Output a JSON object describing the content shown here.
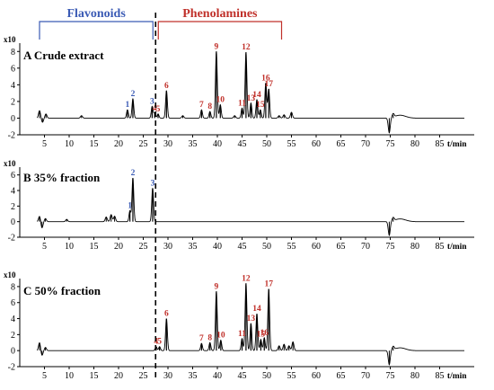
{
  "colors": {
    "flavonoid": "#3b5bb5",
    "phenolamine": "#c0302a",
    "trace": "#000000",
    "divider": "#000000"
  },
  "groups": {
    "flavonoids": {
      "label": "Flavonoids",
      "range": [
        4.0,
        27.5
      ]
    },
    "phenolamines": {
      "label": "Phenolamines",
      "range": [
        27.5,
        53.0
      ]
    }
  },
  "divider_x": 27.5,
  "chart_data": [
    {
      "type": "line",
      "panel": "A",
      "title": "A  Crude extract",
      "yscale_label": "x10",
      "x_unit": "t/min",
      "xlim": [
        0,
        92
      ],
      "ylim": [
        -2,
        9
      ],
      "yticks": [
        -2,
        0,
        2,
        4,
        6,
        8
      ],
      "xticks": [
        5,
        10,
        15,
        20,
        25,
        30,
        35,
        40,
        45,
        50,
        55,
        60,
        65,
        70,
        75,
        80,
        85
      ],
      "peaks": [
        {
          "label": "1",
          "x": 21.8,
          "y": 1.0,
          "group": "flavonoid"
        },
        {
          "label": "2",
          "x": 22.9,
          "y": 2.3,
          "group": "flavonoid"
        },
        {
          "label": "3",
          "x": 26.8,
          "y": 1.4,
          "group": "flavonoid"
        },
        {
          "label": "4",
          "x": 27.3,
          "y": 0.6,
          "group": "phenolamine"
        },
        {
          "label": "5",
          "x": 28.0,
          "y": 0.5,
          "group": "phenolamine"
        },
        {
          "label": "6",
          "x": 29.7,
          "y": 3.3,
          "group": "phenolamine"
        },
        {
          "label": "7",
          "x": 36.8,
          "y": 1.0,
          "group": "phenolamine"
        },
        {
          "label": "8",
          "x": 38.5,
          "y": 0.8,
          "group": "phenolamine"
        },
        {
          "label": "9",
          "x": 39.8,
          "y": 8.0,
          "group": "phenolamine"
        },
        {
          "label": "10",
          "x": 40.6,
          "y": 1.6,
          "group": "phenolamine"
        },
        {
          "label": "11",
          "x": 45.0,
          "y": 1.2,
          "group": "phenolamine"
        },
        {
          "label": "12",
          "x": 45.8,
          "y": 7.9,
          "group": "phenolamine"
        },
        {
          "label": "13",
          "x": 46.8,
          "y": 1.8,
          "group": "phenolamine"
        },
        {
          "label": "14",
          "x": 48.0,
          "y": 2.2,
          "group": "phenolamine"
        },
        {
          "label": "15",
          "x": 48.7,
          "y": 1.0,
          "group": "phenolamine"
        },
        {
          "label": "16",
          "x": 49.8,
          "y": 4.2,
          "group": "phenolamine"
        },
        {
          "label": "17",
          "x": 50.4,
          "y": 3.5,
          "group": "phenolamine"
        }
      ],
      "minor_peaks": [
        {
          "x": 4.0,
          "y": 0.9
        },
        {
          "x": 4.6,
          "y": -0.5
        },
        {
          "x": 5.3,
          "y": 0.5
        },
        {
          "x": 12.5,
          "y": 0.3
        },
        {
          "x": 33.0,
          "y": 0.3
        },
        {
          "x": 43.5,
          "y": 0.3
        },
        {
          "x": 52.5,
          "y": 0.3
        },
        {
          "x": 53.5,
          "y": 0.4
        },
        {
          "x": 55.0,
          "y": 0.7
        },
        {
          "x": 74.8,
          "y": -1.8
        },
        {
          "x": 75.6,
          "y": 0.4
        }
      ]
    },
    {
      "type": "line",
      "panel": "B",
      "title": "B  35% fraction",
      "yscale_label": "x10",
      "x_unit": "t/min",
      "xlim": [
        0,
        92
      ],
      "ylim": [
        -2,
        7
      ],
      "yticks": [
        -2,
        0,
        2,
        4,
        6
      ],
      "xticks": [
        5,
        10,
        15,
        20,
        25,
        30,
        35,
        40,
        45,
        50,
        55,
        60,
        65,
        70,
        75,
        80,
        85
      ],
      "peaks": [
        {
          "label": "1",
          "x": 22.3,
          "y": 1.4,
          "group": "flavonoid"
        },
        {
          "label": "2",
          "x": 22.9,
          "y": 5.6,
          "group": "flavonoid"
        },
        {
          "label": "3",
          "x": 26.9,
          "y": 4.3,
          "group": "flavonoid"
        }
      ],
      "minor_peaks": [
        {
          "x": 4.0,
          "y": 0.7
        },
        {
          "x": 4.5,
          "y": -0.8
        },
        {
          "x": 5.2,
          "y": 0.4
        },
        {
          "x": 9.5,
          "y": 0.3
        },
        {
          "x": 17.5,
          "y": 0.6
        },
        {
          "x": 18.5,
          "y": 0.9
        },
        {
          "x": 19.2,
          "y": 0.7
        },
        {
          "x": 74.8,
          "y": -1.8
        },
        {
          "x": 75.6,
          "y": 0.4
        }
      ]
    },
    {
      "type": "line",
      "panel": "C",
      "title": "C  50% fraction",
      "yscale_label": "x10",
      "x_unit": "t/min",
      "xlim": [
        0,
        92
      ],
      "ylim": [
        -2,
        9
      ],
      "yticks": [
        -2,
        0,
        2,
        4,
        6,
        8
      ],
      "xticks": [
        5,
        10,
        15,
        20,
        25,
        30,
        35,
        40,
        45,
        50,
        55,
        60,
        65,
        70,
        75,
        80,
        85
      ],
      "peaks": [
        {
          "label": "4",
          "x": 27.6,
          "y": 0.5,
          "group": "phenolamine"
        },
        {
          "label": "5",
          "x": 28.3,
          "y": 0.5,
          "group": "phenolamine"
        },
        {
          "label": "6",
          "x": 29.7,
          "y": 4.0,
          "group": "phenolamine"
        },
        {
          "label": "7",
          "x": 36.8,
          "y": 0.9,
          "group": "phenolamine"
        },
        {
          "label": "8",
          "x": 38.5,
          "y": 1.0,
          "group": "phenolamine"
        },
        {
          "label": "9",
          "x": 39.8,
          "y": 7.4,
          "group": "phenolamine"
        },
        {
          "label": "10",
          "x": 40.7,
          "y": 1.3,
          "group": "phenolamine"
        },
        {
          "label": "11",
          "x": 45.0,
          "y": 1.5,
          "group": "phenolamine"
        },
        {
          "label": "12",
          "x": 45.8,
          "y": 8.4,
          "group": "phenolamine"
        },
        {
          "label": "13",
          "x": 46.8,
          "y": 3.4,
          "group": "phenolamine"
        },
        {
          "label": "14",
          "x": 48.0,
          "y": 4.6,
          "group": "phenolamine"
        },
        {
          "label": "15",
          "x": 48.8,
          "y": 1.4,
          "group": "phenolamine"
        },
        {
          "label": "16",
          "x": 49.5,
          "y": 1.6,
          "group": "phenolamine"
        },
        {
          "label": "17",
          "x": 50.4,
          "y": 7.7,
          "group": "phenolamine"
        }
      ],
      "minor_peaks": [
        {
          "x": 4.0,
          "y": 1.0
        },
        {
          "x": 4.5,
          "y": -0.6
        },
        {
          "x": 5.2,
          "y": 0.4
        },
        {
          "x": 52.5,
          "y": 0.6
        },
        {
          "x": 53.5,
          "y": 0.8
        },
        {
          "x": 54.5,
          "y": 0.6
        },
        {
          "x": 55.3,
          "y": 1.1
        },
        {
          "x": 74.8,
          "y": -1.8
        },
        {
          "x": 75.6,
          "y": 0.4
        }
      ]
    }
  ]
}
